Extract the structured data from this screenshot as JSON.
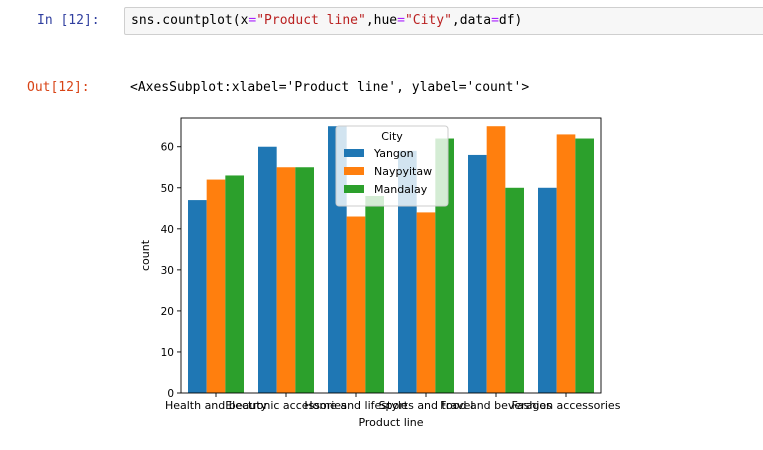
{
  "cell": {
    "in_prompt": "In [12]:",
    "code": {
      "fn": "sns.countplot(",
      "x_kw": "x",
      "x_val": "\"Product line\"",
      "hue_kw": "hue",
      "hue_val": "\"City\"",
      "data_kw": "data",
      "data_val": "df",
      "close": ")"
    },
    "out_prompt": "Out[12]:",
    "output_text": "<AxesSubplot:xlabel='Product line', ylabel='count'>"
  },
  "chart_data": {
    "type": "bar",
    "xlabel": "Product line",
    "ylabel": "count",
    "ylim": [
      0,
      67
    ],
    "yticks": [
      0,
      10,
      20,
      30,
      40,
      50,
      60
    ],
    "categories": [
      "Health and beauty",
      "Electronic accessories",
      "Home and lifestyle",
      "Sports and travel",
      "Food and beverages",
      "Fashion accessories"
    ],
    "legend": {
      "title": "City",
      "placement": "upper-center"
    },
    "series": [
      {
        "name": "Yangon",
        "color": "#1f77b4",
        "values": [
          47,
          60,
          65,
          59,
          58,
          50
        ]
      },
      {
        "name": "Naypyitaw",
        "color": "#ff7f0e",
        "values": [
          52,
          55,
          43,
          44,
          65,
          63
        ]
      },
      {
        "name": "Mandalay",
        "color": "#2ca02c",
        "values": [
          53,
          55,
          48,
          62,
          50,
          62
        ]
      }
    ]
  }
}
